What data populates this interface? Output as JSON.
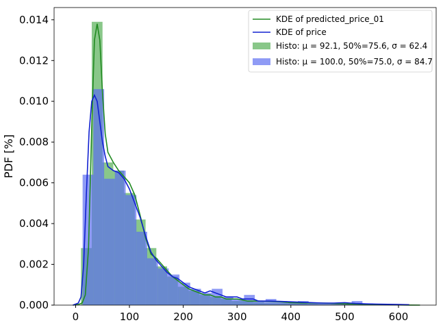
{
  "chart_data": {
    "type": "histogram+kde",
    "xlabel": "",
    "ylabel": "PDF [%]",
    "xlim": [
      -40,
      670
    ],
    "ylim": [
      0,
      0.0146
    ],
    "xticks": [
      0,
      100,
      200,
      300,
      400,
      500,
      600
    ],
    "yticks": [
      0.0,
      0.002,
      0.004,
      0.006,
      0.008,
      0.01,
      0.012,
      0.014
    ],
    "ytick_labels": [
      "0.000",
      "0.002",
      "0.004",
      "0.006",
      "0.008",
      "0.010",
      "0.012",
      "0.014"
    ],
    "grid": false,
    "legend_position": "top-right",
    "histograms": [
      {
        "name": "Histo: μ = 92.1, 50%=75.6, σ = 62.4",
        "label_parts": {
          "mean": "92.1",
          "median": "75.6",
          "sigma": "62.4"
        },
        "color": "#62b462",
        "opacity": 0.75,
        "bin_edges": [
          10,
          30,
          50,
          70,
          90,
          110,
          130,
          150,
          170,
          190,
          210,
          230,
          250,
          270,
          290,
          310,
          330,
          350,
          370,
          390,
          410,
          430,
          450,
          470,
          490,
          510,
          530,
          550,
          570,
          590
        ],
        "values": [
          0.0028,
          0.0139,
          0.007,
          0.0066,
          0.0055,
          0.0042,
          0.0028,
          0.0019,
          0.0014,
          0.0009,
          0.0007,
          0.0005,
          0.0004,
          0.0003,
          0.0002,
          0.0002,
          0.00015,
          0.0001,
          0.0001,
          0.0001,
          8e-05,
          6e-05,
          5e-05,
          4e-05,
          3e-05,
          3e-05,
          2e-05,
          2e-05,
          1e-05
        ]
      },
      {
        "name": "Histo: μ = 100.0, 50%=75.0, σ = 84.7",
        "label_parts": {
          "mean": "100.0",
          "median": "75.0",
          "sigma": "84.7"
        },
        "color": "#5a6cf0",
        "opacity": 0.68,
        "bin_edges": [
          13,
          33,
          53,
          73,
          93,
          113,
          133,
          153,
          173,
          193,
          213,
          233,
          253,
          273,
          293,
          313,
          333,
          353,
          373,
          393,
          413,
          433,
          453,
          473,
          493,
          513,
          533,
          553,
          573,
          593
        ],
        "values": [
          0.0064,
          0.0106,
          0.0062,
          0.0066,
          0.0054,
          0.0036,
          0.0023,
          0.0018,
          0.0015,
          0.0011,
          0.0008,
          0.0006,
          0.0008,
          0.0004,
          0.0003,
          0.0005,
          0.0002,
          0.0003,
          0.0002,
          0.0001,
          0.0002,
          0.0001,
          8e-05,
          0.0001,
          6e-05,
          0.0002,
          8e-05,
          5e-05,
          4e-05
        ]
      }
    ],
    "kde": [
      {
        "name": "KDE of predicted_price_01",
        "color": "#208a20",
        "x": [
          -5,
          5,
          12,
          18,
          24,
          30,
          35,
          40,
          45,
          50,
          55,
          60,
          70,
          80,
          90,
          100,
          110,
          120,
          130,
          140,
          150,
          160,
          170,
          180,
          190,
          200,
          210,
          220,
          230,
          240,
          250,
          260,
          270,
          280,
          290,
          300,
          320,
          340,
          360,
          380,
          400,
          420,
          440,
          460,
          480,
          500,
          520,
          540,
          560,
          580,
          600,
          620,
          640
        ],
        "y": [
          0,
          3e-05,
          0.0001,
          0.0005,
          0.0028,
          0.0088,
          0.013,
          0.0138,
          0.013,
          0.0104,
          0.0084,
          0.0075,
          0.007,
          0.0066,
          0.0063,
          0.006,
          0.0054,
          0.0044,
          0.0033,
          0.0025,
          0.0023,
          0.002,
          0.0017,
          0.0014,
          0.0012,
          0.001,
          0.0008,
          0.0007,
          0.0006,
          0.0005,
          0.0005,
          0.0004,
          0.0004,
          0.0003,
          0.0003,
          0.0003,
          0.0002,
          0.0002,
          0.00018,
          0.00016,
          0.00012,
          0.0001,
          0.0001,
          0.0001,
          8e-05,
          6e-05,
          5e-05,
          4e-05,
          3e-05,
          2e-05,
          1e-05,
          5e-06,
          0
        ]
      },
      {
        "name": "KDE of price",
        "color": "#1020d0",
        "x": [
          -5,
          5,
          10,
          15,
          20,
          25,
          30,
          35,
          40,
          45,
          50,
          55,
          60,
          70,
          80,
          90,
          100,
          110,
          120,
          130,
          140,
          150,
          160,
          170,
          180,
          190,
          200,
          210,
          220,
          230,
          240,
          250,
          260,
          270,
          280,
          290,
          300,
          310,
          320,
          330,
          340,
          360,
          380,
          400,
          420,
          440,
          460,
          480,
          500,
          520,
          540,
          560,
          580,
          600,
          620
        ],
        "y": [
          0,
          0.0001,
          0.0004,
          0.002,
          0.0055,
          0.0085,
          0.01,
          0.0103,
          0.01,
          0.009,
          0.008,
          0.0073,
          0.0068,
          0.0066,
          0.0065,
          0.0062,
          0.0057,
          0.005,
          0.0043,
          0.0034,
          0.0026,
          0.0022,
          0.0019,
          0.0016,
          0.0014,
          0.0013,
          0.0011,
          0.0009,
          0.0008,
          0.0007,
          0.0006,
          0.0007,
          0.0006,
          0.0005,
          0.0004,
          0.0004,
          0.0004,
          0.0003,
          0.0003,
          0.0003,
          0.0002,
          0.0002,
          0.00018,
          0.00016,
          0.00014,
          0.00012,
          0.0001,
          0.0001,
          0.00012,
          8e-05,
          6e-05,
          5e-05,
          4e-05,
          3e-05,
          2e-05
        ]
      }
    ]
  }
}
